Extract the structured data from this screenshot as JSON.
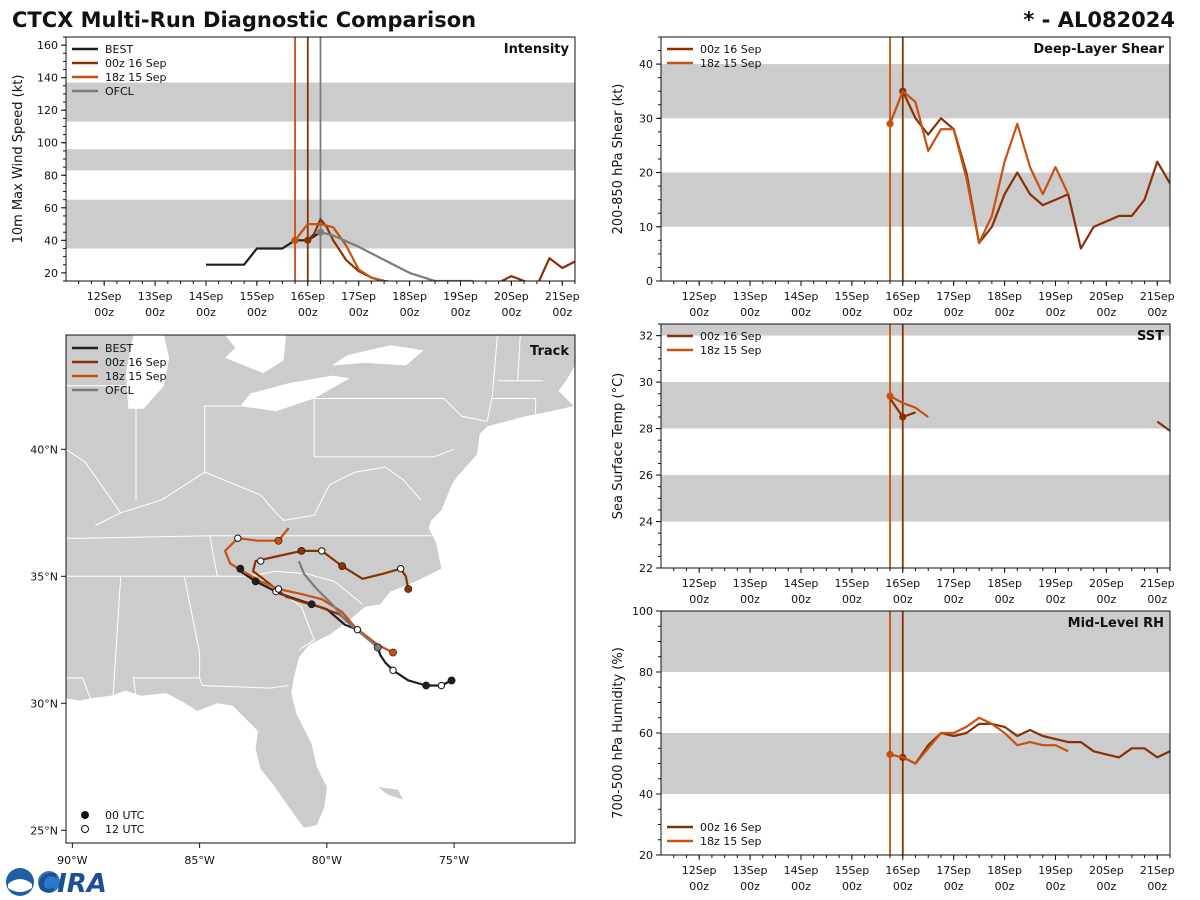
{
  "header": {
    "title": "CTCX Multi-Run Diagnostic Comparison",
    "storm_id": "* - AL082024"
  },
  "colors": {
    "best": "#1f1f1f",
    "run_00z": "#8a3104",
    "run_18z": "#c9500f",
    "ofcl": "#7b7b7b",
    "band": "#cccccc",
    "land": "#cccccc",
    "border": "#ffffff"
  },
  "logo": {
    "text": "CIRA",
    "icon": "noaa-emblem-icon"
  },
  "time_axis": {
    "labels": [
      "12Sep\n00z",
      "13Sep\n00z",
      "14Sep\n00z",
      "15Sep\n00z",
      "16Sep\n00z",
      "17Sep\n00z",
      "18Sep\n00z",
      "19Sep\n00z",
      "20Sep\n00z",
      "21Sep\n00z"
    ],
    "tick_days": [
      12,
      13,
      14,
      15,
      16,
      17,
      18,
      19,
      20,
      21
    ],
    "xlim": [
      11.25,
      21.25
    ]
  },
  "chart_data": [
    {
      "id": "intensity",
      "type": "line",
      "title": "Intensity",
      "ylabel": "10m Max Wind Speed (kt)",
      "ylim": [
        15,
        165
      ],
      "yticks": [
        20,
        40,
        60,
        80,
        100,
        120,
        140,
        160
      ],
      "bands": [
        [
          35,
          65
        ],
        [
          83,
          96
        ],
        [
          113,
          137
        ]
      ],
      "vlines": [
        {
          "series": "18z 15 Sep",
          "day": 15.75
        },
        {
          "series": "00z 16 Sep",
          "day": 16.0
        },
        {
          "series": "OFCL",
          "day": 16.25
        }
      ],
      "series": [
        {
          "name": "BEST",
          "key": "best",
          "width": 2.2,
          "x": [
            14.0,
            14.25,
            14.5,
            14.75,
            15.0,
            15.25,
            15.5,
            15.75,
            16.0,
            16.25
          ],
          "y": [
            25,
            25,
            25,
            25,
            35,
            35,
            35,
            40,
            40,
            45
          ],
          "dots": []
        },
        {
          "name": "00z 16 Sep",
          "key": "run_00z",
          "width": 2.2,
          "x": [
            16.0,
            16.125,
            16.25,
            16.375,
            16.5,
            16.75,
            17.0,
            17.25,
            17.5,
            17.75,
            18.0,
            18.25,
            18.5,
            18.75,
            19.0,
            19.25,
            19.5,
            19.75,
            20.0,
            20.25,
            20.5,
            20.75,
            21.0,
            21.25
          ],
          "y": [
            40,
            44,
            53,
            48,
            40,
            28,
            21,
            17,
            15,
            14,
            13,
            12,
            12,
            11,
            11,
            12,
            12,
            14,
            18,
            15,
            12,
            29,
            23,
            27
          ],
          "dots": [
            16.0
          ]
        },
        {
          "name": "18z 15 Sep",
          "key": "run_18z",
          "width": 2.2,
          "x": [
            15.75,
            16.0,
            16.25,
            16.5,
            16.75,
            17.0,
            17.25,
            17.5,
            17.75,
            18.0
          ],
          "y": [
            40,
            50,
            50,
            48,
            37,
            22,
            17,
            15,
            14,
            13
          ],
          "dots": [
            15.75
          ]
        },
        {
          "name": "OFCL",
          "key": "ofcl",
          "width": 2.2,
          "x": [
            16.25,
            16.5,
            17.0,
            17.5,
            18.0,
            18.5,
            19.0,
            19.25
          ],
          "y": [
            45,
            43,
            36,
            28,
            20,
            15,
            15,
            15
          ],
          "dots": [
            16.25
          ]
        }
      ]
    },
    {
      "id": "shear",
      "type": "line",
      "title": "Deep-Layer Shear",
      "ylabel": "200-850 hPa Shear (kt)",
      "ylim": [
        0,
        45
      ],
      "yticks": [
        0,
        10,
        20,
        30,
        40
      ],
      "bands": [
        [
          10,
          20
        ],
        [
          30,
          40
        ]
      ],
      "vlines": [
        {
          "series": "18z 15 Sep",
          "day": 15.75
        },
        {
          "series": "00z 16 Sep",
          "day": 16.0
        }
      ],
      "series": [
        {
          "name": "00z 16 Sep",
          "key": "run_00z",
          "width": 2.2,
          "x": [
            16.0,
            16.25,
            16.5,
            16.75,
            17.0,
            17.25,
            17.5,
            17.75,
            18.0,
            18.25,
            18.5,
            18.75,
            19.0,
            19.25,
            19.5,
            19.75,
            20.0,
            20.25,
            20.5,
            20.75,
            21.0,
            21.25
          ],
          "y": [
            35,
            30,
            27,
            30,
            28,
            20,
            7,
            10,
            16,
            20,
            16,
            14,
            15,
            16,
            6,
            10,
            11,
            12,
            12,
            15,
            22,
            18
          ],
          "dots": [
            16.0
          ]
        },
        {
          "name": "18z 15 Sep",
          "key": "run_18z",
          "width": 2.2,
          "x": [
            15.75,
            16.0,
            16.25,
            16.5,
            16.75,
            17.0,
            17.25,
            17.5,
            17.75,
            18.0,
            18.25,
            18.5,
            18.75,
            19.0,
            19.25
          ],
          "y": [
            29,
            35,
            33,
            24,
            28,
            28,
            19,
            7,
            12,
            22,
            29,
            21,
            16,
            21,
            16
          ],
          "dots": [
            15.75
          ]
        }
      ]
    },
    {
      "id": "sst",
      "type": "line",
      "title": "SST",
      "ylabel": "Sea Surface Temp (°C)",
      "ylim": [
        22,
        32.5
      ],
      "yticks": [
        22,
        24,
        26,
        28,
        30,
        32
      ],
      "bands": [
        [
          24,
          26
        ],
        [
          28,
          30
        ],
        [
          32,
          33
        ]
      ],
      "vlines": [
        {
          "series": "18z 15 Sep",
          "day": 15.75
        },
        {
          "series": "00z 16 Sep",
          "day": 16.0
        }
      ],
      "series": [
        {
          "name": "00z 16 Sep",
          "key": "run_00z",
          "width": 2.2,
          "x": [
            15.75,
            16.0,
            16.25
          ],
          "y": [
            29.3,
            28.5,
            28.7
          ],
          "dots": [
            16.0
          ]
        },
        {
          "name": "00z 16 Sep (late)",
          "key": "run_00z",
          "width": 2.2,
          "nolegend": true,
          "x": [
            21.0,
            21.25
          ],
          "y": [
            28.3,
            27.9
          ],
          "dots": []
        },
        {
          "name": "18z 15 Sep",
          "key": "run_18z",
          "width": 2.2,
          "x": [
            15.75,
            16.0,
            16.25,
            16.5
          ],
          "y": [
            29.4,
            29.1,
            28.9,
            28.5
          ],
          "dots": [
            15.75
          ]
        }
      ]
    },
    {
      "id": "rh",
      "type": "line",
      "title": "Mid-Level RH",
      "ylabel": "700-500 hPa Humidity (%)",
      "ylim": [
        20,
        100
      ],
      "yticks": [
        20,
        40,
        60,
        80,
        100
      ],
      "bands": [
        [
          40,
          60
        ],
        [
          80,
          100
        ]
      ],
      "vlines": [
        {
          "series": "18z 15 Sep",
          "day": 15.75
        },
        {
          "series": "00z 16 Sep",
          "day": 16.0
        }
      ],
      "series": [
        {
          "name": "00z 16 Sep",
          "key": "run_00z",
          "width": 2.2,
          "x": [
            16.0,
            16.25,
            16.5,
            16.75,
            17.0,
            17.25,
            17.5,
            17.75,
            18.0,
            18.25,
            18.5,
            18.75,
            19.0,
            19.25,
            19.5,
            19.75,
            20.0,
            20.25,
            20.5,
            20.75,
            21.0,
            21.25
          ],
          "y": [
            52,
            50,
            56,
            60,
            59,
            60,
            63,
            63,
            62,
            59,
            61,
            59,
            58,
            57,
            57,
            54,
            53,
            52,
            55,
            55,
            52,
            54
          ],
          "dots": [
            16.0
          ]
        },
        {
          "name": "18z 15 Sep",
          "key": "run_18z",
          "width": 2.2,
          "x": [
            15.75,
            16.0,
            16.25,
            16.5,
            16.75,
            17.0,
            17.25,
            17.5,
            17.75,
            18.0,
            18.25,
            18.5,
            18.75,
            19.0,
            19.25
          ],
          "y": [
            53,
            52,
            50,
            55,
            60,
            60,
            62,
            65,
            63,
            60,
            56,
            57,
            56,
            56,
            54
          ],
          "dots": [
            15.75
          ]
        }
      ]
    }
  ],
  "track_map": {
    "title": "Track",
    "lon_range": [
      -90.25,
      -70.25
    ],
    "lat_range": [
      24.5,
      44.5
    ],
    "lon_ticks": [
      -90,
      -85,
      -80,
      -75
    ],
    "lon_labels": [
      "90°W",
      "85°W",
      "80°W",
      "75°W"
    ],
    "lat_ticks": [
      25,
      30,
      35,
      40
    ],
    "lat_labels": [
      "25°N",
      "30°N",
      "35°N",
      "40°N"
    ],
    "marker_legend": [
      "00 UTC",
      "12 UTC"
    ],
    "tracks": [
      {
        "name": "BEST",
        "key": "best",
        "points": [
          [
            -75.1,
            30.9
          ],
          [
            -75.5,
            30.7
          ],
          [
            -76.1,
            30.7
          ],
          [
            -76.8,
            30.9
          ],
          [
            -77.4,
            31.3
          ],
          [
            -77.7,
            31.6
          ],
          [
            -77.9,
            31.9
          ],
          [
            -78.0,
            32.2
          ],
          [
            -78.8,
            32.9
          ],
          [
            -79.3,
            33.1
          ],
          [
            -80.0,
            33.7
          ],
          [
            -80.6,
            33.9
          ],
          [
            -81.2,
            34.1
          ],
          [
            -81.8,
            34.3
          ],
          [
            -82.2,
            34.5
          ],
          [
            -82.8,
            34.8
          ],
          [
            -83.4,
            35.2
          ]
        ],
        "filled": [
          [
            -75.1,
            30.9
          ],
          [
            -76.1,
            30.7
          ],
          [
            -78.0,
            32.2
          ],
          [
            -80.6,
            33.9
          ],
          [
            -82.8,
            34.8
          ],
          [
            -83.4,
            35.3
          ]
        ],
        "open": [
          [
            -75.5,
            30.7
          ],
          [
            -77.4,
            31.3
          ],
          [
            -78.8,
            32.9
          ],
          [
            -82.0,
            34.4
          ]
        ]
      },
      {
        "name": "00z 16 Sep",
        "key": "run_00z",
        "points": [
          [
            -78.0,
            32.2
          ],
          [
            -78.9,
            33.0
          ],
          [
            -79.5,
            33.5
          ],
          [
            -80.3,
            33.8
          ],
          [
            -81.0,
            34.0
          ],
          [
            -81.6,
            34.2
          ],
          [
            -82.0,
            34.5
          ],
          [
            -82.5,
            34.9
          ],
          [
            -82.9,
            35.2
          ],
          [
            -82.8,
            35.6
          ],
          [
            -81.9,
            35.8
          ],
          [
            -81.0,
            36.0
          ],
          [
            -80.2,
            36.0
          ],
          [
            -79.4,
            35.4
          ],
          [
            -78.6,
            34.9
          ],
          [
            -77.8,
            35.1
          ],
          [
            -77.1,
            35.3
          ],
          [
            -76.9,
            35.0
          ],
          [
            -76.8,
            34.5
          ]
        ],
        "filled": [
          [
            -78.0,
            32.2
          ],
          [
            -81.0,
            36.0
          ],
          [
            -79.4,
            35.4
          ],
          [
            -76.8,
            34.5
          ]
        ],
        "open": [
          [
            -80.2,
            36.0
          ],
          [
            -77.1,
            35.3
          ],
          [
            -82.6,
            35.6
          ]
        ]
      },
      {
        "name": "18z 15 Sep",
        "key": "run_18z",
        "points": [
          [
            -77.4,
            32.0
          ],
          [
            -78.0,
            32.3
          ],
          [
            -78.9,
            33.0
          ],
          [
            -79.4,
            33.6
          ],
          [
            -80.2,
            34.1
          ],
          [
            -81.0,
            34.3
          ],
          [
            -81.9,
            34.5
          ],
          [
            -82.6,
            34.8
          ],
          [
            -83.3,
            35.2
          ],
          [
            -83.8,
            35.5
          ],
          [
            -84.0,
            36.0
          ],
          [
            -83.5,
            36.5
          ],
          [
            -82.7,
            36.4
          ],
          [
            -81.9,
            36.4
          ],
          [
            -81.5,
            36.9
          ]
        ],
        "filled": [
          [
            -77.4,
            32.0
          ],
          [
            -81.9,
            36.4
          ]
        ],
        "open": [
          [
            -83.5,
            36.5
          ],
          [
            -81.9,
            34.5
          ]
        ]
      },
      {
        "name": "OFCL",
        "key": "ofcl",
        "points": [
          [
            -78.0,
            32.2
          ],
          [
            -78.6,
            32.7
          ],
          [
            -79.2,
            33.2
          ],
          [
            -79.8,
            33.9
          ],
          [
            -80.4,
            34.5
          ],
          [
            -80.9,
            35.1
          ],
          [
            -81.1,
            35.6
          ]
        ],
        "filled": [
          [
            -78.0,
            32.2
          ]
        ],
        "open": []
      }
    ]
  }
}
